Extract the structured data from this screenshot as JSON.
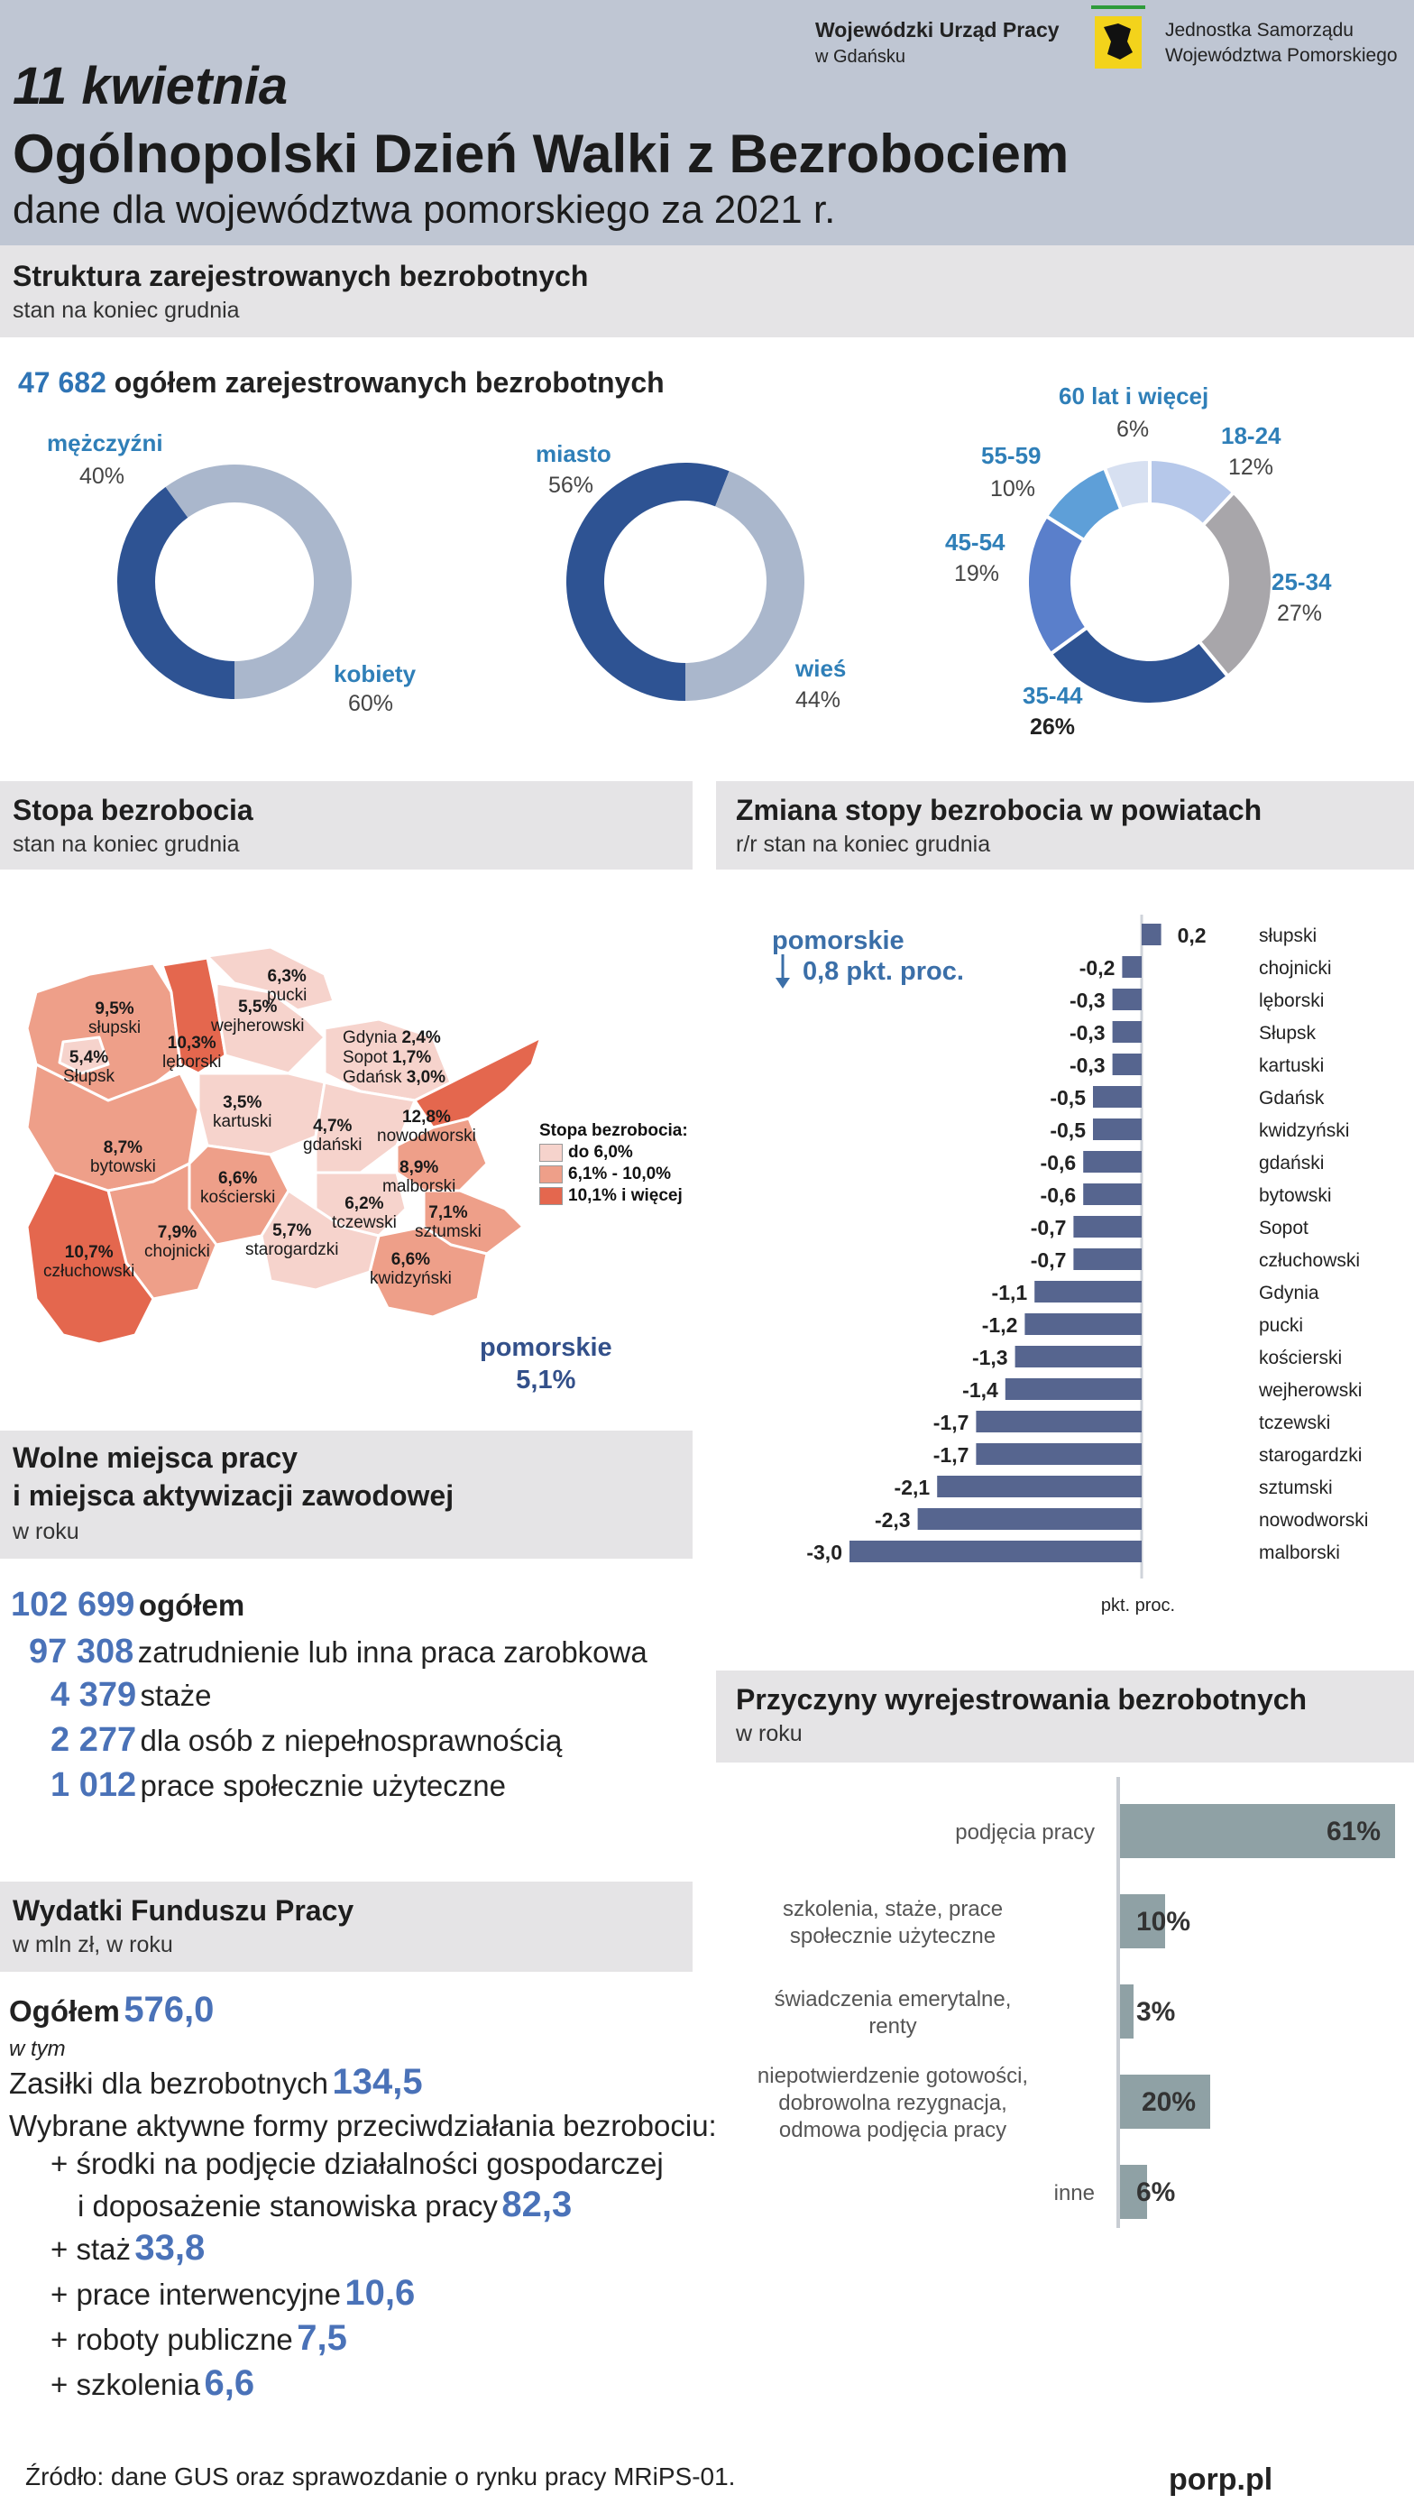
{
  "header": {
    "date": "11 kwietnia",
    "title": "Ogólnopolski Dzień Walki z Bezrobociem",
    "subtitle": "dane dla województwa pomorskiego za 2021 r.",
    "org1_line1": "Wojewódzki Urząd Pracy",
    "org1_line2": "w Gdańsku",
    "org2_line1": "Jednostka Samorządu",
    "org2_line2": "Województwa Pomorskiego"
  },
  "structure": {
    "title": "Struktura zarejestrowanych bezrobotnych",
    "subtitle": "stan na koniec grudnia",
    "total_value": "47 682",
    "total_label": "ogółem zarejestrowanych bezrobotnych"
  },
  "sections": {
    "rate_title": "Stopa bezrobocia",
    "rate_sub": "stan na koniec grudnia",
    "change_title": "Zmiana stopy bezrobocia w powiatach",
    "change_sub": "r/r stan na koniec grudnia",
    "jobs_title_1": "Wolne miejsca pracy",
    "jobs_title_2": "i miejsca aktywizacji zawodowej",
    "jobs_sub": "w roku",
    "reasons_title": "Przyczyny wyrejestrowania bezrobotnych",
    "reasons_sub": "w roku",
    "fund_title": "Wydatki Funduszu Pracy",
    "fund_sub": "w mln zł, w roku"
  },
  "map": {
    "legend_title": "Stopa bezrobocia:",
    "legend": [
      {
        "label": "do 6,0%",
        "color": "#f6d3cc"
      },
      {
        "label": "6,1% - 10,0%",
        "color": "#ee9f89"
      },
      {
        "label": "10,1% i więcej",
        "color": "#e4674e"
      }
    ],
    "total_label": "pomorskie",
    "total_value": "5,1%",
    "regions": [
      {
        "value": "9,5%",
        "name": "słupski"
      },
      {
        "value": "5,4%",
        "name": "Słupsk"
      },
      {
        "value": "10,3%",
        "name": "lęborski"
      },
      {
        "value": "5,5%",
        "name": "wejherowski"
      },
      {
        "value": "6,3%",
        "name": "pucki"
      },
      {
        "value": "3,5%",
        "name": "kartuski"
      },
      {
        "value": "8,7%",
        "name": "bytowski"
      },
      {
        "value": "6,6%",
        "name": "kościerski"
      },
      {
        "value": "4,7%",
        "name": "gdański"
      },
      {
        "value": "12,8%",
        "name": "nowodworski"
      },
      {
        "value": "8,9%",
        "name": "malborski"
      },
      {
        "value": "6,2%",
        "name": "tczewski"
      },
      {
        "value": "7,1%",
        "name": "sztumski"
      },
      {
        "value": "5,7%",
        "name": "starogardzki"
      },
      {
        "value": "6,6%",
        "name": "kwidzyński"
      },
      {
        "value": "7,9%",
        "name": "chojnicki"
      },
      {
        "value": "10,7%",
        "name": "człuchowski"
      }
    ],
    "cities": [
      {
        "name": "Gdynia",
        "value": "2,4%"
      },
      {
        "name": "Sopot",
        "value": "1,7%"
      },
      {
        "name": "Gdańsk",
        "value": "3,0%"
      }
    ]
  },
  "jobs": {
    "total_value": "102 699",
    "total_label": "ogółem",
    "items": [
      {
        "value": "97 308",
        "label": "zatrudnienie lub inna praca zarobkowa"
      },
      {
        "value": "4 379",
        "label": "staże"
      },
      {
        "value": "2 277",
        "label": "dla osób z niepełnosprawnością"
      },
      {
        "value": "1 012",
        "label": "prace społecznie użyteczne"
      }
    ]
  },
  "fund": {
    "total_label": "Ogółem",
    "total_value": "576,0",
    "in_which": "w tym",
    "benefits_label": "Zasiłki dla bezrobotnych",
    "benefits_value": "134,5",
    "active_label": "Wybrane aktywne formy przeciwdziałania bezrobociu:",
    "items": [
      {
        "label": "+ środki na podjęcie działalności gospodarczej",
        "value": ""
      },
      {
        "label": "i doposażenie stanowiska pracy",
        "value": "82,3"
      },
      {
        "label": "+ staż",
        "value": "33,8"
      },
      {
        "label": "+ prace interwencyjne",
        "value": "10,6"
      },
      {
        "label": "+ roboty publiczne",
        "value": "7,5"
      },
      {
        "label": "+ szkolenia",
        "value": "6,6"
      }
    ]
  },
  "footer": {
    "source": "Źródło: dane GUS oraz sprawozdanie o rynku pracy MRiPS-01.",
    "site": "porp.pl"
  },
  "chart_data": [
    {
      "type": "pie",
      "categories": [
        "mężczyźni",
        "kobiety"
      ],
      "values": [
        40,
        60
      ],
      "labels": [
        "40%",
        "60%"
      ],
      "colors": [
        "#2e5393",
        "#aab7cc"
      ]
    },
    {
      "type": "pie",
      "categories": [
        "miasto",
        "wieś"
      ],
      "values": [
        56,
        44
      ],
      "labels": [
        "56%",
        "44%"
      ],
      "colors": [
        "#2e5393",
        "#aab7cc"
      ]
    },
    {
      "type": "pie",
      "categories": [
        "18-24",
        "25-34",
        "35-44",
        "45-54",
        "55-59",
        "60 lat i więcej"
      ],
      "values": [
        12,
        27,
        26,
        19,
        10,
        6
      ],
      "labels": [
        "12%",
        "27%",
        "26%",
        "19%",
        "10%",
        "6%"
      ],
      "colors": [
        "#b6c8ea",
        "#a8a6aa",
        "#2e5393",
        "#5a7fcb",
        "#5e9fd8",
        "#d7e0f1"
      ]
    },
    {
      "type": "bar",
      "orientation": "horizontal",
      "xlabel": "pkt. proc.",
      "annotation_label": "pomorskie",
      "annotation_value": "0,8 pkt. proc.",
      "annotation_direction": "down",
      "categories": [
        "słupski",
        "chojnicki",
        "lęborski",
        "Słupsk",
        "kartuski",
        "Gdańsk",
        "kwidzyński",
        "gdański",
        "bytowski",
        "Sopot",
        "człuchowski",
        "Gdynia",
        "pucki",
        "kościerski",
        "wejherowski",
        "tczewski",
        "starogardzki",
        "sztumski",
        "nowodworski",
        "malborski"
      ],
      "values": [
        0.2,
        -0.2,
        -0.3,
        -0.3,
        -0.3,
        -0.5,
        -0.5,
        -0.6,
        -0.6,
        -0.7,
        -0.7,
        -1.1,
        -1.2,
        -1.3,
        -1.4,
        -1.7,
        -1.7,
        -2.1,
        -2.3,
        -3.0
      ],
      "value_labels": [
        "0,2",
        "-0,2",
        "-0,3",
        "-0,3",
        "-0,3",
        "-0,5",
        "-0,5",
        "-0,6",
        "-0,6",
        "-0,7",
        "-0,7",
        "-1,1",
        "-1,2",
        "-1,3",
        "-1,4",
        "-1,7",
        "-1,7",
        "-2,1",
        "-2,3",
        "-3,0"
      ],
      "color": "#56658f"
    },
    {
      "type": "bar",
      "orientation": "horizontal",
      "categories": [
        "podjęcia pracy",
        "szkolenia, staże, prace społecznie użyteczne",
        "świadczenia emerytalne, renty",
        "niepotwierdzenie gotowości, dobrowolna rezygnacja, odmowa podjęcia pracy",
        "inne"
      ],
      "category_lines": [
        [
          "podjęcia pracy"
        ],
        [
          "szkolenia, staże, prace",
          "społecznie użyteczne"
        ],
        [
          "świadczenia emerytalne,",
          "renty"
        ],
        [
          "niepotwierdzenie gotowości,",
          "dobrowolna rezygnacja,",
          "odmowa podjęcia pracy"
        ],
        [
          "inne"
        ]
      ],
      "values": [
        61,
        10,
        3,
        20,
        6
      ],
      "value_labels": [
        "61%",
        "10%",
        "3%",
        "20%",
        "6%"
      ],
      "color": "#8fa1a5"
    }
  ]
}
